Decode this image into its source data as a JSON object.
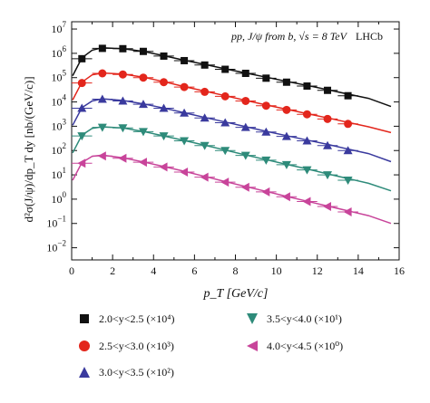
{
  "chart_data": {
    "type": "scatter",
    "annotation_process": "pp, J/ψ from b, √s = 8 TeV",
    "annotation_experiment": "LHCb",
    "xlabel": "p_T [GeV/c]",
    "ylabel": "d²σ(J/ψ)/dp_T dy [nb/(GeV/c)]",
    "xlim": [
      0,
      16
    ],
    "ylim_log10": [
      -2.5,
      7.3
    ],
    "y_scale": "log",
    "x_ticks": [
      "0",
      "2",
      "4",
      "6",
      "8",
      "10",
      "12",
      "14",
      "16"
    ],
    "y_ticks": [
      {
        "base": "10",
        "exp": "7"
      },
      {
        "base": "10",
        "exp": "6"
      },
      {
        "base": "10",
        "exp": "5"
      },
      {
        "base": "10",
        "exp": "4"
      },
      {
        "base": "10",
        "exp": "3"
      },
      {
        "base": "10",
        "exp": "2"
      },
      {
        "base": "10",
        "exp": "1"
      },
      {
        "base": "10",
        "exp": "0"
      },
      {
        "base": "10",
        "exp": "−1"
      },
      {
        "base": "10",
        "exp": "−2"
      }
    ],
    "series": [
      {
        "name": "2.0<y<2.5 (×10⁴)",
        "marker": "square",
        "color": "#111111",
        "line_color": "#111111",
        "x": [
          0.5,
          1.5,
          2.5,
          3.5,
          4.5,
          5.5,
          6.5,
          7.5,
          8.5,
          9.5,
          10.5,
          11.5,
          12.5,
          13.5
        ],
        "y": [
          600000.0,
          1600000.0,
          1550000.0,
          1200000.0,
          770000.0,
          500000.0,
          330000.0,
          220000.0,
          150000.0,
          95000.0,
          65000.0,
          45000.0,
          30000.0,
          18000.0
        ],
        "curve_x": [
          0.05,
          0.5,
          1.0,
          1.5,
          2.5,
          3.5,
          4.5,
          5.5,
          6.5,
          7.5,
          8.5,
          9.5,
          10.5,
          11.5,
          12.5,
          13.5,
          14.5,
          15.6
        ],
        "curve_y": [
          120000.0,
          650000.0,
          1350000.0,
          1700000.0,
          1550000.0,
          1200000.0,
          800000.0,
          520000.0,
          350000.0,
          230000.0,
          155000.0,
          105000.0,
          70000.0,
          48000.0,
          32000.0,
          21000.0,
          14000.0,
          6500.0
        ]
      },
      {
        "name": "2.5<y<3.0 (×10³)",
        "marker": "circle",
        "color": "#e3261c",
        "line_color": "#e3261c",
        "x": [
          0.5,
          1.5,
          2.5,
          3.5,
          4.5,
          5.5,
          6.5,
          7.5,
          8.5,
          9.5,
          10.5,
          11.5,
          12.5,
          13.5
        ],
        "y": [
          60000.0,
          150000.0,
          135000.0,
          100000.0,
          65000.0,
          41000.0,
          26000.0,
          17000.0,
          11000.0,
          7000.0,
          4700.0,
          3100.0,
          2000.0,
          1250.0
        ],
        "curve_x": [
          0.05,
          0.5,
          1.0,
          1.5,
          2.5,
          3.5,
          4.5,
          5.5,
          6.5,
          7.5,
          8.5,
          9.5,
          10.5,
          11.5,
          12.5,
          13.5,
          14.5,
          15.6
        ],
        "curve_y": [
          12000.0,
          65000.0,
          130000.0,
          155000.0,
          140000.0,
          105000.0,
          68000.0,
          43000.0,
          28000.0,
          18000.0,
          11500.0,
          7500.0,
          5000.0,
          3300.0,
          2200.0,
          1450.0,
          950.0,
          550.0
        ]
      },
      {
        "name": "3.0<y<3.5 (×10²)",
        "marker": "triangle-up",
        "color": "#3a3a9e",
        "line_color": "#3a3a9e",
        "x": [
          0.5,
          1.5,
          2.5,
          3.5,
          4.5,
          5.5,
          6.5,
          7.5,
          8.5,
          9.5,
          10.5,
          11.5,
          12.5,
          13.5
        ],
        "y": [
          5500.0,
          13000.0,
          11000.0,
          8000.0,
          5500.0,
          3500.0,
          2200.0,
          1400.0,
          900.0,
          580.0,
          380.0,
          250.0,
          160.0,
          100.0
        ],
        "curve_x": [
          0.05,
          0.5,
          1.0,
          1.5,
          2.5,
          3.5,
          4.5,
          5.5,
          6.5,
          7.5,
          8.5,
          9.5,
          10.5,
          11.5,
          12.5,
          13.5,
          14.5,
          15.6
        ],
        "curve_y": [
          1100.0,
          5800.0,
          11000.0,
          13500.0,
          11500.0,
          8300.0,
          5600.0,
          3600.0,
          2300.0,
          1500.0,
          960.0,
          620.0,
          410.0,
          270.0,
          180.0,
          115.0,
          75.0,
          35.0
        ]
      },
      {
        "name": "3.5<y<4.0 (×10¹)",
        "marker": "triangle-down",
        "color": "#2e8b7a",
        "line_color": "#2e8b7a",
        "x": [
          0.5,
          1.5,
          2.5,
          3.5,
          4.5,
          5.5,
          6.5,
          7.5,
          8.5,
          9.5,
          10.5,
          11.5,
          12.5,
          13.5
        ],
        "y": [
          400.0,
          900.0,
          850.0,
          600.0,
          400.0,
          250.0,
          160.0,
          100.0,
          63.0,
          40.0,
          26.0,
          16.0,
          10.0,
          6.0
        ],
        "curve_x": [
          0.05,
          0.5,
          1.0,
          1.5,
          2.5,
          3.5,
          4.5,
          5.5,
          6.5,
          7.5,
          8.5,
          9.5,
          10.5,
          11.5,
          12.5,
          13.5,
          14.5,
          15.6
        ],
        "curve_y": [
          80.0,
          430.0,
          820.0,
          950.0,
          850.0,
          610.0,
          400.0,
          260.0,
          165.0,
          105.0,
          66.0,
          42.0,
          27.0,
          17.5,
          11.0,
          7.0,
          4.5,
          2.2
        ]
      },
      {
        "name": "4.0<y<4.5 (×10⁰)",
        "marker": "triangle-left",
        "color": "#c8449a",
        "line_color": "#c8449a",
        "x": [
          0.5,
          1.5,
          2.5,
          3.5,
          4.5,
          5.5,
          6.5,
          7.5,
          8.5,
          9.5,
          10.5,
          11.5,
          12.5,
          13.5
        ],
        "y": [
          30.0,
          60.0,
          48.0,
          33.0,
          21.0,
          13.0,
          8.0,
          5.0,
          3.1,
          2.0,
          1.25,
          0.8,
          0.5,
          0.3
        ],
        "curve_x": [
          0.05,
          0.5,
          1.0,
          1.5,
          2.5,
          3.5,
          4.5,
          5.5,
          6.5,
          7.5,
          8.5,
          9.5,
          10.5,
          11.5,
          12.5,
          13.5,
          14.5,
          15.6
        ],
        "curve_y": [
          6.0,
          32.0,
          58.0,
          65.0,
          50.0,
          34.0,
          22.0,
          14.0,
          8.6,
          5.3,
          3.3,
          2.1,
          1.3,
          0.82,
          0.52,
          0.33,
          0.21,
          0.1
        ]
      }
    ]
  }
}
